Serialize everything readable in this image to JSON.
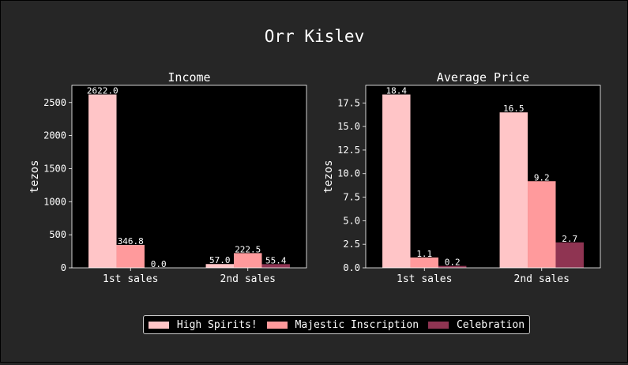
{
  "figure": {
    "title": "Orr Kislev"
  },
  "colors": {
    "background": "#262626",
    "axes_bg": "#000000",
    "text": "#ffffff"
  },
  "legend": [
    {
      "label": "High Spirits!",
      "color": "#ffc5c7"
    },
    {
      "label": "Majestic Inscription",
      "color": "#ff9a9c"
    },
    {
      "label": "Celebration",
      "color": "#8f3452"
    }
  ],
  "chart_data": [
    {
      "type": "bar",
      "title": "Income",
      "xlabel": "",
      "ylabel": "tezos",
      "categories": [
        "1st sales",
        "2nd sales"
      ],
      "ylim": [
        0,
        2760
      ],
      "yticks": [
        0,
        500,
        1000,
        1500,
        2000,
        2500
      ],
      "ytick_labels": [
        "0",
        "500",
        "1000",
        "1500",
        "2000",
        "2500"
      ],
      "series": [
        {
          "name": "High Spirits!",
          "values": [
            2622.0,
            57.0
          ],
          "labels": [
            "2622.0",
            "57.0"
          ]
        },
        {
          "name": "Majestic Inscription",
          "values": [
            346.8,
            222.5
          ],
          "labels": [
            "346.8",
            "222.5"
          ]
        },
        {
          "name": "Celebration",
          "values": [
            0.0,
            55.4
          ],
          "labels": [
            "0.0",
            "55.4"
          ]
        }
      ]
    },
    {
      "type": "bar",
      "title": "Average Price",
      "xlabel": "",
      "ylabel": "tezos",
      "categories": [
        "1st sales",
        "2nd sales"
      ],
      "ylim": [
        0,
        19.37
      ],
      "yticks": [
        0,
        2.5,
        5,
        7.5,
        10,
        12.5,
        15,
        17.5
      ],
      "ytick_labels": [
        "0.0",
        "2.5",
        "5.0",
        "7.5",
        "10.0",
        "12.5",
        "15.0",
        "17.5"
      ],
      "series": [
        {
          "name": "High Spirits!",
          "values": [
            18.4,
            16.5
          ],
          "labels": [
            "18.4",
            "16.5"
          ]
        },
        {
          "name": "Majestic Inscription",
          "values": [
            1.1,
            9.2
          ],
          "labels": [
            "1.1",
            "9.2"
          ]
        },
        {
          "name": "Celebration",
          "values": [
            0.2,
            2.7
          ],
          "labels": [
            "0.2",
            "2.7"
          ]
        }
      ]
    }
  ]
}
